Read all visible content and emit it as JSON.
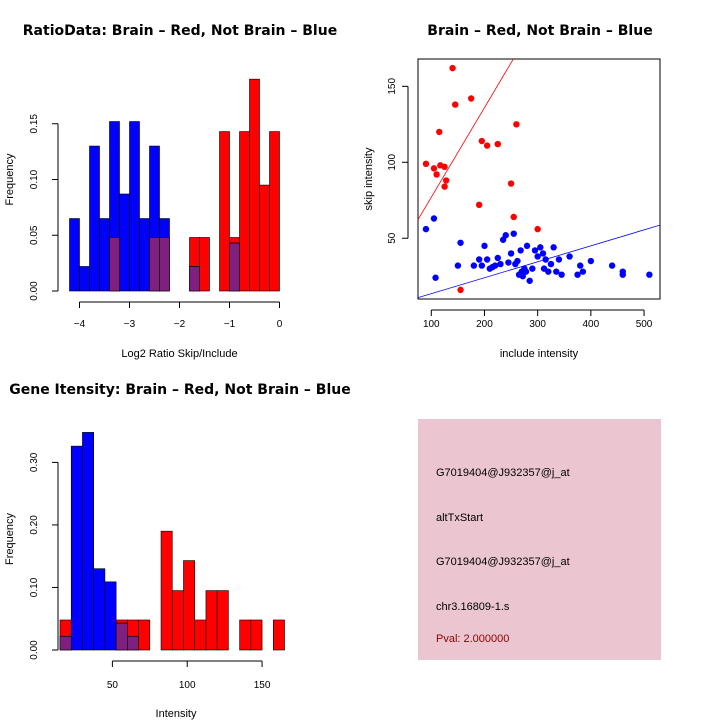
{
  "colors": {
    "brain": "#ff0000",
    "not_brain": "#0000ff",
    "overlap": "#7f1f7f",
    "info_bg": "#ebc6d0",
    "pval_text": "#8b0000"
  },
  "chart_data": [
    {
      "id": "ratio",
      "type": "bar",
      "title": "RatioData: Brain – Red, Not Brain – Blue",
      "xlabel": "Log2 Ratio Skip/Include",
      "ylabel": "Frequency",
      "xlim": [
        -4.25,
        0.25
      ],
      "ylim": [
        0,
        0.2
      ],
      "xticks": [
        -4,
        -3,
        -2,
        -1,
        0
      ],
      "xtick_labels": [
        "−4",
        "−3",
        "−2",
        "−1",
        "0"
      ],
      "yticks": [
        0,
        0.05,
        0.1,
        0.15
      ],
      "ytick_labels": [
        "0.00",
        "0.05",
        "0.10",
        "0.15"
      ],
      "bin_width": 0.2,
      "series": [
        {
          "name": "Not Brain",
          "color": "#0000ff",
          "bins": [
            [
              -4.2,
              0.065
            ],
            [
              -4.0,
              0.022
            ],
            [
              -3.8,
              0.13
            ],
            [
              -3.6,
              0.065
            ],
            [
              -3.4,
              0.152
            ],
            [
              -3.2,
              0.087
            ],
            [
              -3.0,
              0.152
            ],
            [
              -2.8,
              0.065
            ],
            [
              -2.6,
              0.13
            ],
            [
              -2.4,
              0.065
            ],
            [
              -1.8,
              0.022
            ],
            [
              -1.0,
              0.043
            ]
          ]
        },
        {
          "name": "Brain",
          "color": "#ff0000",
          "bins": [
            [
              -3.4,
              0.048
            ],
            [
              -2.6,
              0.048
            ],
            [
              -2.4,
              0.048
            ],
            [
              -1.8,
              0.048
            ],
            [
              -1.6,
              0.048
            ],
            [
              -1.2,
              0.143
            ],
            [
              -1.0,
              0.048
            ],
            [
              -0.8,
              0.143
            ],
            [
              -0.6,
              0.19
            ],
            [
              -0.4,
              0.095
            ],
            [
              -0.2,
              0.143
            ]
          ]
        }
      ]
    },
    {
      "id": "scatter",
      "type": "scatter",
      "title": "Brain – Red, Not Brain – Blue",
      "xlabel": "include intensity",
      "ylabel": "skip intensity",
      "xlim": [
        75,
        530
      ],
      "ylim": [
        10,
        168
      ],
      "xticks": [
        100,
        200,
        300,
        400,
        500
      ],
      "yticks": [
        50,
        100,
        150
      ],
      "series": [
        {
          "name": "Brain",
          "color": "#ff0000",
          "points": [
            [
              90,
              99
            ],
            [
              105,
              96
            ],
            [
              110,
              92
            ],
            [
              115,
              120
            ],
            [
              117,
              98
            ],
            [
              125,
              84
            ],
            [
              125,
              97
            ],
            [
              128,
              88
            ],
            [
              140,
              162
            ],
            [
              145,
              138
            ],
            [
              155,
              16
            ],
            [
              175,
              142
            ],
            [
              190,
              72
            ],
            [
              195,
              114
            ],
            [
              205,
              111
            ],
            [
              225,
              112
            ],
            [
              250,
              86
            ],
            [
              255,
              64
            ],
            [
              260,
              125
            ],
            [
              300,
              56
            ]
          ],
          "fit": {
            "intercept": 18,
            "slope": 0.59
          }
        },
        {
          "name": "Not Brain",
          "color": "#0000ff",
          "points": [
            [
              90,
              56
            ],
            [
              105,
              63
            ],
            [
              108,
              24
            ],
            [
              150,
              32
            ],
            [
              155,
              47
            ],
            [
              180,
              32
            ],
            [
              190,
              36
            ],
            [
              195,
              32
            ],
            [
              200,
              45
            ],
            [
              205,
              36
            ],
            [
              210,
              30
            ],
            [
              215,
              31
            ],
            [
              220,
              32
            ],
            [
              225,
              37
            ],
            [
              230,
              33
            ],
            [
              235,
              49
            ],
            [
              240,
              52
            ],
            [
              245,
              34
            ],
            [
              250,
              40
            ],
            [
              255,
              53
            ],
            [
              258,
              33
            ],
            [
              262,
              35
            ],
            [
              265,
              26
            ],
            [
              268,
              42
            ],
            [
              270,
              28
            ],
            [
              272,
              25
            ],
            [
              275,
              30
            ],
            [
              278,
              28
            ],
            [
              280,
              45
            ],
            [
              285,
              22
            ],
            [
              290,
              30
            ],
            [
              295,
              42
            ],
            [
              300,
              38
            ],
            [
              305,
              44
            ],
            [
              310,
              40
            ],
            [
              312,
              30
            ],
            [
              315,
              36
            ],
            [
              320,
              28
            ],
            [
              325,
              33
            ],
            [
              330,
              44
            ],
            [
              335,
              28
            ],
            [
              340,
              36
            ],
            [
              345,
              26
            ],
            [
              360,
              38
            ],
            [
              375,
              26
            ],
            [
              380,
              32
            ],
            [
              385,
              28
            ],
            [
              400,
              35
            ],
            [
              440,
              32
            ],
            [
              460,
              26
            ],
            [
              460,
              28
            ],
            [
              510,
              26
            ]
          ],
          "fit": {
            "intercept": 3,
            "slope": 0.105
          }
        }
      ]
    },
    {
      "id": "intensity",
      "type": "bar",
      "title": "Gene Itensity: Brain – Red, Not Brain – Blue",
      "xlabel": "Intensity",
      "ylabel": "Frequency",
      "xlim": [
        15,
        170
      ],
      "ylim": [
        0,
        0.355
      ],
      "xticks": [
        50,
        100,
        150
      ],
      "yticks": [
        0,
        0.1,
        0.2,
        0.3
      ],
      "ytick_labels": [
        "0.00",
        "0.10",
        "0.20",
        "0.30"
      ],
      "bin_width": 7.5,
      "series": [
        {
          "name": "Not Brain",
          "color": "#0000ff",
          "bins": [
            [
              15,
              0.022
            ],
            [
              22.5,
              0.326
            ],
            [
              30,
              0.348
            ],
            [
              37.5,
              0.13
            ],
            [
              45,
              0.109
            ],
            [
              52.5,
              0.043
            ],
            [
              60,
              0.022
            ]
          ]
        },
        {
          "name": "Brain",
          "color": "#ff0000",
          "bins": [
            [
              15,
              0.048
            ],
            [
              52.5,
              0.048
            ],
            [
              60,
              0.048
            ],
            [
              67.5,
              0.048
            ],
            [
              82.5,
              0.19
            ],
            [
              90,
              0.095
            ],
            [
              97.5,
              0.143
            ],
            [
              105,
              0.048
            ],
            [
              112.5,
              0.095
            ],
            [
              120,
              0.095
            ],
            [
              135,
              0.048
            ],
            [
              142.5,
              0.048
            ],
            [
              157.5,
              0.048
            ]
          ]
        }
      ]
    }
  ],
  "info_panel": {
    "probe_id": "G7019404@J932357@j_at",
    "event_type": "altTxStart",
    "probe_id_repeat": "G7019404@J932357@j_at",
    "location": "chr3.16809-1.s",
    "pval": "Pval: 2.000000"
  }
}
